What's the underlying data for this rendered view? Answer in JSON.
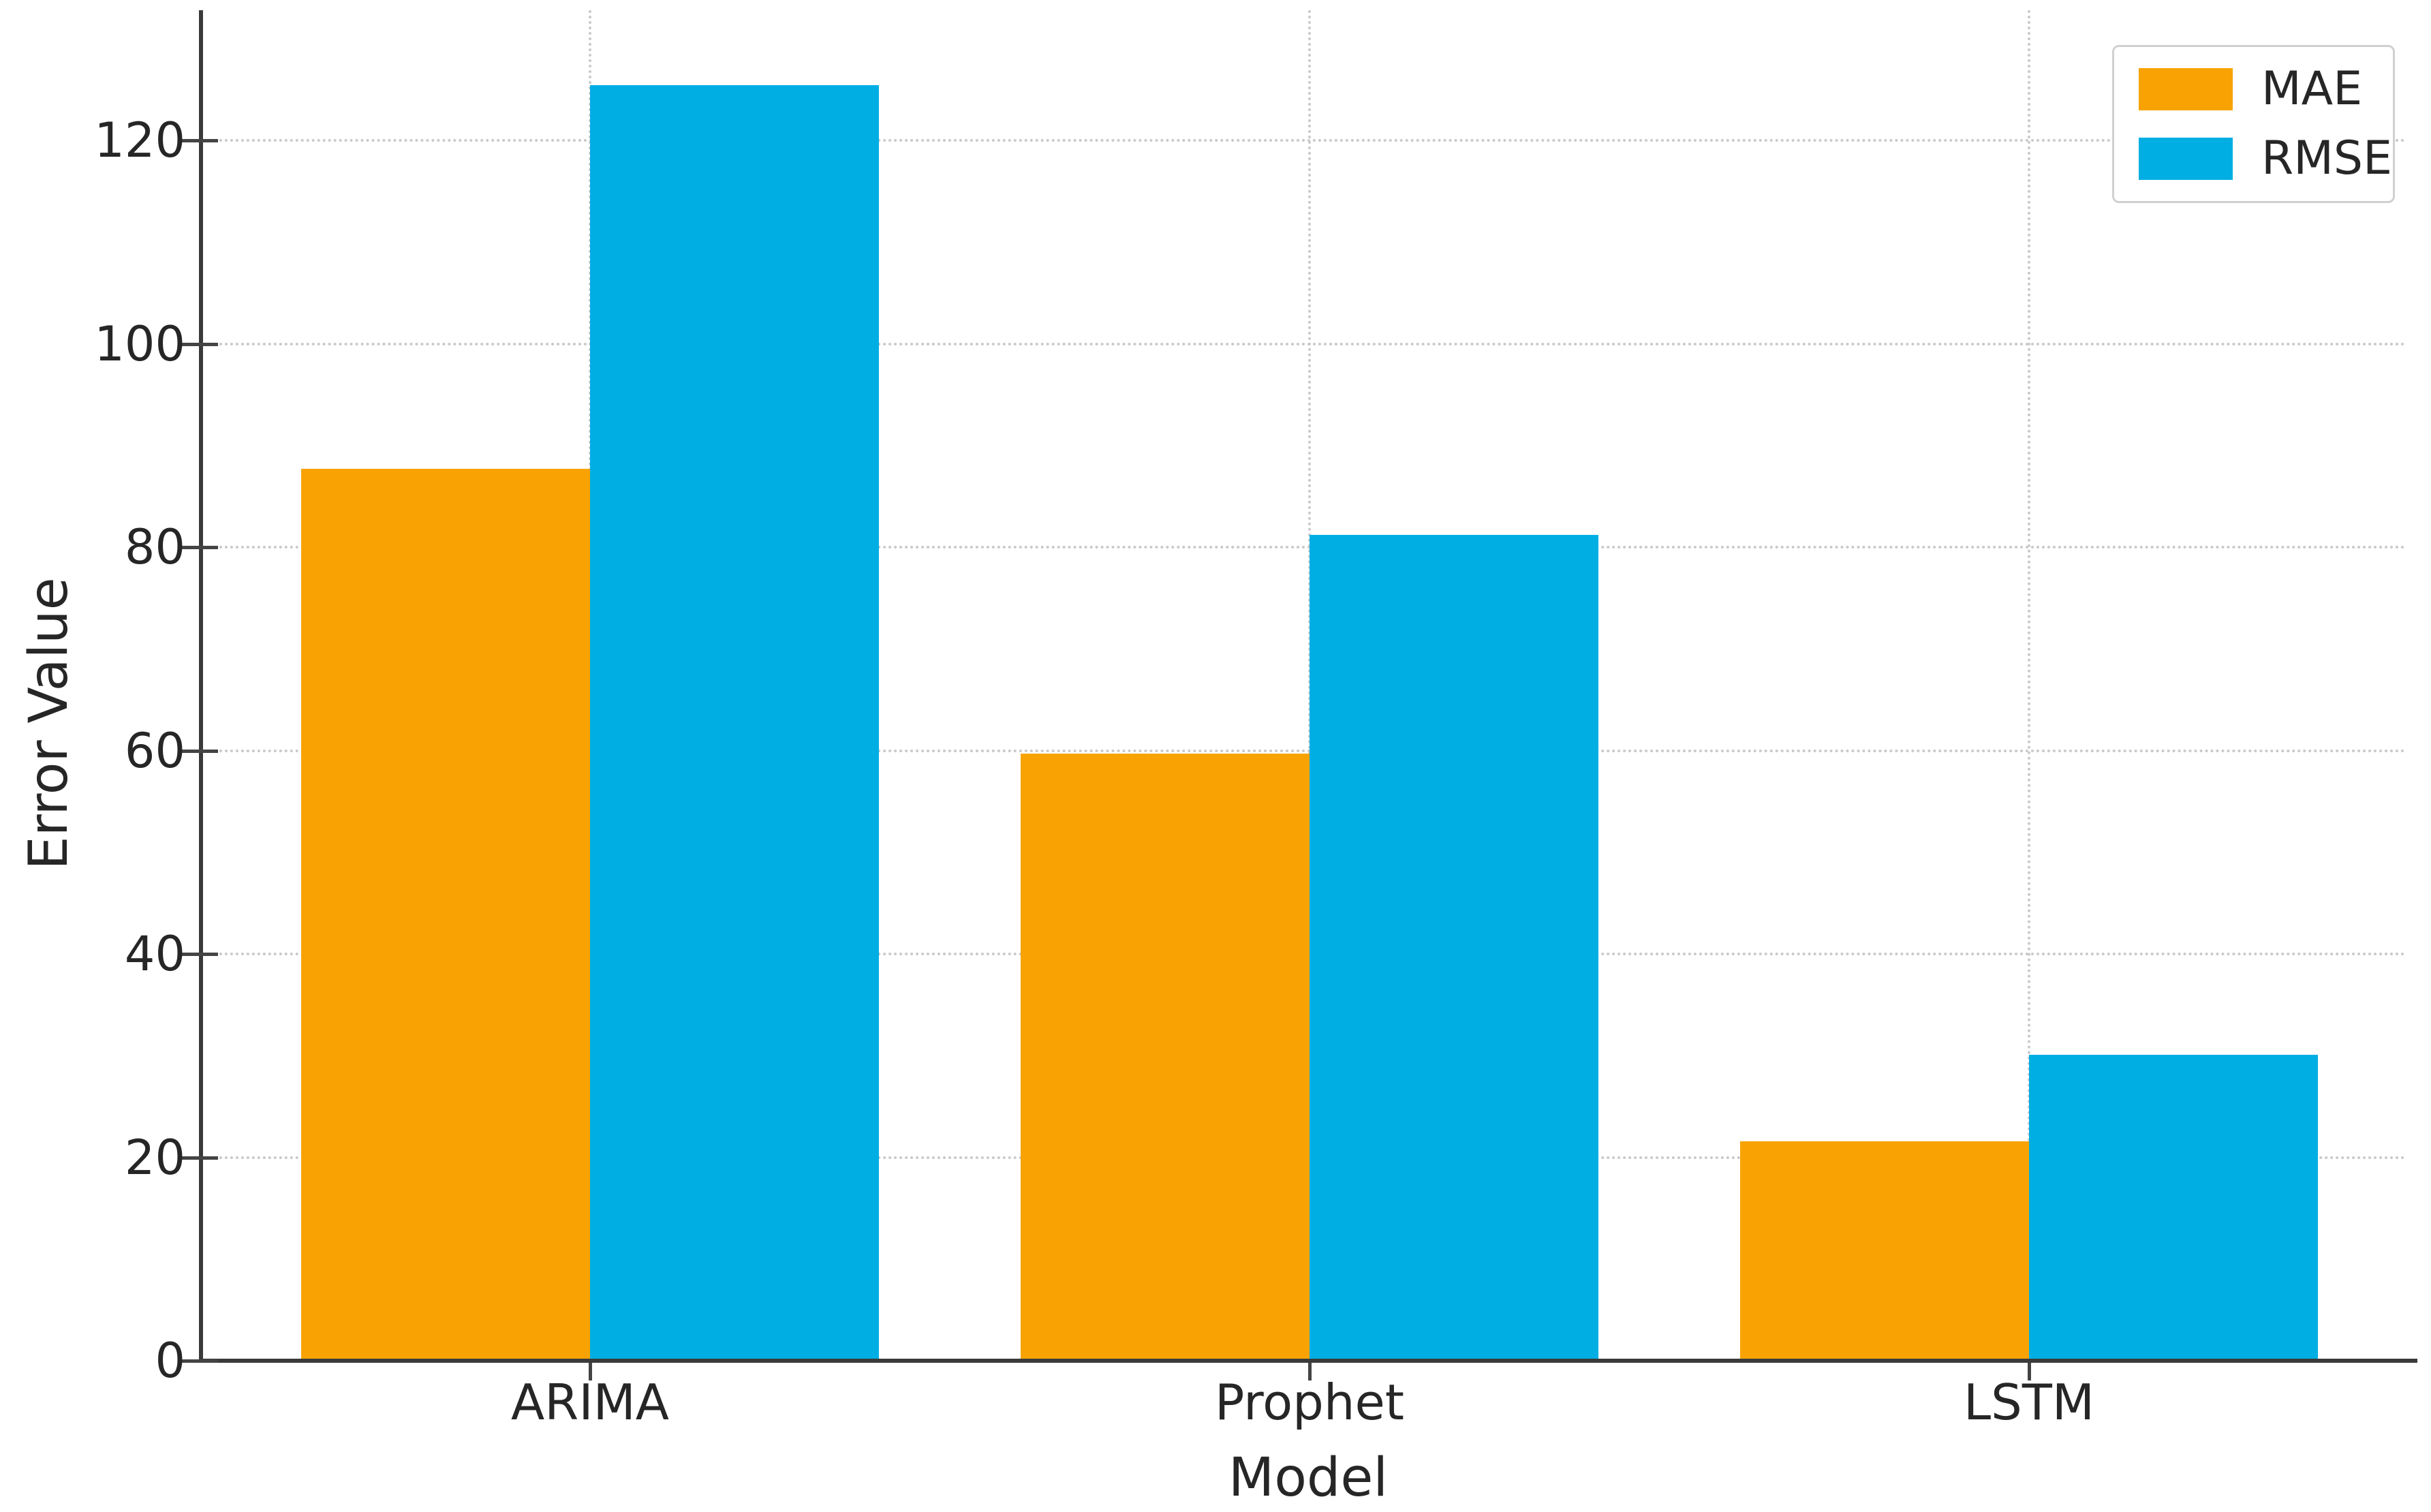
{
  "figure": {
    "background": "#ffffff"
  },
  "chart_data": {
    "type": "bar",
    "title": "",
    "xlabel": "Model",
    "ylabel": "Error Value",
    "categories": [
      "ARIMA",
      "Prophet",
      "LSTM"
    ],
    "series": [
      {
        "name": "MAE",
        "color": "#f8a303",
        "values": [
          87.7,
          59.7,
          21.6
        ]
      },
      {
        "name": "RMSE",
        "color": "#00aee4",
        "values": [
          125.4,
          81.2,
          30.1
        ]
      }
    ],
    "y_ticks": [
      0,
      20,
      40,
      60,
      80,
      100,
      120
    ],
    "ylim": [
      0,
      133
    ],
    "grid": "dotted, horizontal and vertical at category centers",
    "legend_position": "upper right"
  },
  "colors": {
    "grid": "#c9c9c9",
    "spine": "#3a3a3a",
    "text": "#262626",
    "background": "#ffffff"
  }
}
